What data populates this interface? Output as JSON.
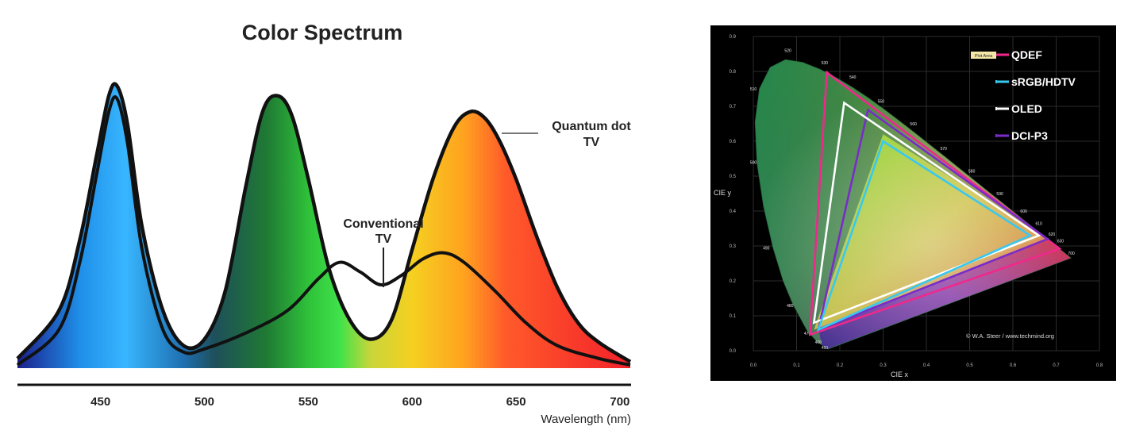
{
  "chart_data": [
    {
      "type": "line",
      "title": "Color Spectrum",
      "xlabel": "Wavelength (nm)",
      "ylabel": "",
      "xlim": [
        410,
        705
      ],
      "ylim": [
        0,
        1
      ],
      "x_ticks": [
        "450",
        "500",
        "550",
        "600",
        "650",
        "700"
      ],
      "x_tick_values": [
        450,
        500,
        550,
        600,
        650,
        700
      ],
      "grid": false,
      "spectrum_stops": [
        {
          "nm": 410,
          "color": "#1c1f8c"
        },
        {
          "nm": 440,
          "color": "#1f8fe8"
        },
        {
          "nm": 462,
          "color": "#38b6ff"
        },
        {
          "nm": 490,
          "color": "#1f6fb0"
        },
        {
          "nm": 505,
          "color": "#1e4f5a"
        },
        {
          "nm": 530,
          "color": "#1f7a33"
        },
        {
          "nm": 550,
          "color": "#2fc13a"
        },
        {
          "nm": 565,
          "color": "#3fe24a"
        },
        {
          "nm": 580,
          "color": "#c8d63a"
        },
        {
          "nm": 600,
          "color": "#f5d020"
        },
        {
          "nm": 625,
          "color": "#ffa21f"
        },
        {
          "nm": 645,
          "color": "#ff5a2a"
        },
        {
          "nm": 705,
          "color": "#f3212a"
        }
      ],
      "series": [
        {
          "name": "Quantum dot TV",
          "x": [
            410,
            430,
            440,
            448,
            454,
            458,
            463,
            470,
            480,
            490,
            500,
            510,
            520,
            528,
            535,
            542,
            550,
            560,
            570,
            580,
            590,
            600,
            610,
            620,
            628,
            635,
            642,
            650,
            660,
            670,
            680,
            690,
            705
          ],
          "values": [
            0.03,
            0.18,
            0.4,
            0.66,
            0.85,
            0.88,
            0.76,
            0.44,
            0.18,
            0.07,
            0.09,
            0.24,
            0.57,
            0.8,
            0.85,
            0.79,
            0.59,
            0.31,
            0.15,
            0.09,
            0.15,
            0.37,
            0.59,
            0.75,
            0.8,
            0.78,
            0.71,
            0.59,
            0.41,
            0.25,
            0.14,
            0.08,
            0.02
          ]
        },
        {
          "name": "Conventional TV",
          "x": [
            410,
            430,
            440,
            448,
            454,
            458,
            463,
            470,
            480,
            490,
            500,
            520,
            540,
            555,
            565,
            575,
            585,
            595,
            605,
            615,
            625,
            640,
            655,
            670,
            690,
            705
          ],
          "values": [
            0.01,
            0.12,
            0.33,
            0.6,
            0.8,
            0.84,
            0.7,
            0.37,
            0.12,
            0.05,
            0.06,
            0.11,
            0.18,
            0.28,
            0.33,
            0.3,
            0.26,
            0.29,
            0.34,
            0.36,
            0.33,
            0.24,
            0.14,
            0.07,
            0.03,
            0.01
          ]
        }
      ],
      "annotations": [
        {
          "text_lines": [
            "Quantum dot",
            "TV"
          ]
        },
        {
          "text_lines": [
            "Conventional",
            "TV"
          ]
        }
      ]
    },
    {
      "type": "scatter",
      "title": "",
      "xlabel": "CIE x",
      "ylabel": "CIE y",
      "xlim": [
        0,
        0.8
      ],
      "ylim": [
        0,
        0.9
      ],
      "x_ticks": [
        "0.0",
        "0.1",
        "0.2",
        "0.3",
        "0.4",
        "0.5",
        "0.6",
        "0.7",
        "0.8"
      ],
      "y_ticks": [
        "0.0",
        "0.1",
        "0.2",
        "0.3",
        "0.4",
        "0.5",
        "0.6",
        "0.7",
        "0.8",
        "0.9"
      ],
      "grid": true,
      "legend_position": "top-right",
      "plot_area_tag": "Plot Area",
      "credit": "© W.A. Steer / www.techmind.org",
      "locus": [
        [
          0.1741,
          0.005
        ],
        [
          0.1738,
          0.0049
        ],
        [
          0.1733,
          0.0048
        ],
        [
          0.1726,
          0.0048
        ],
        [
          0.1714,
          0.0051
        ],
        [
          0.1689,
          0.0069
        ],
        [
          0.1644,
          0.0109
        ],
        [
          0.1566,
          0.0177
        ],
        [
          0.144,
          0.0297
        ],
        [
          0.1241,
          0.0578
        ],
        [
          0.0913,
          0.1327
        ],
        [
          0.0687,
          0.2007
        ],
        [
          0.0454,
          0.295
        ],
        [
          0.0235,
          0.4127
        ],
        [
          0.0082,
          0.5384
        ],
        [
          0.0039,
          0.6548
        ],
        [
          0.0139,
          0.7502
        ],
        [
          0.0389,
          0.812
        ],
        [
          0.0743,
          0.8338
        ],
        [
          0.1142,
          0.8262
        ],
        [
          0.1547,
          0.8059
        ],
        [
          0.1929,
          0.7816
        ],
        [
          0.2296,
          0.7543
        ],
        [
          0.2658,
          0.7243
        ],
        [
          0.3016,
          0.6923
        ],
        [
          0.3373,
          0.6589
        ],
        [
          0.3731,
          0.6245
        ],
        [
          0.4087,
          0.5896
        ],
        [
          0.4441,
          0.5547
        ],
        [
          0.4788,
          0.5202
        ],
        [
          0.5125,
          0.4866
        ],
        [
          0.5448,
          0.4544
        ],
        [
          0.5752,
          0.4242
        ],
        [
          0.6029,
          0.3965
        ],
        [
          0.627,
          0.3725
        ],
        [
          0.6482,
          0.3514
        ],
        [
          0.6658,
          0.334
        ],
        [
          0.6801,
          0.3197
        ],
        [
          0.6915,
          0.3083
        ],
        [
          0.7006,
          0.2993
        ],
        [
          0.7079,
          0.292
        ],
        [
          0.714,
          0.2859
        ],
        [
          0.719,
          0.2809
        ],
        [
          0.723,
          0.277
        ],
        [
          0.726,
          0.274
        ],
        [
          0.7347,
          0.2653
        ]
      ],
      "wavelength_labels": [
        {
          "text": "520",
          "x": 0.08,
          "y": 0.856
        },
        {
          "text": "530",
          "x": 0.165,
          "y": 0.82
        },
        {
          "text": "540",
          "x": 0.23,
          "y": 0.78
        },
        {
          "text": "510",
          "x": 0.0,
          "y": 0.745
        },
        {
          "text": "550",
          "x": 0.295,
          "y": 0.71
        },
        {
          "text": "560",
          "x": 0.37,
          "y": 0.645
        },
        {
          "text": "500",
          "x": 0.0,
          "y": 0.535
        },
        {
          "text": "570",
          "x": 0.44,
          "y": 0.575
        },
        {
          "text": "580",
          "x": 0.505,
          "y": 0.51
        },
        {
          "text": "590",
          "x": 0.57,
          "y": 0.445
        },
        {
          "text": "600",
          "x": 0.625,
          "y": 0.395
        },
        {
          "text": "490",
          "x": 0.03,
          "y": 0.29
        },
        {
          "text": "610",
          "x": 0.66,
          "y": 0.36
        },
        {
          "text": "620",
          "x": 0.69,
          "y": 0.33
        },
        {
          "text": "630",
          "x": 0.71,
          "y": 0.31
        },
        {
          "text": "480",
          "x": 0.085,
          "y": 0.125
        },
        {
          "text": "470",
          "x": 0.125,
          "y": 0.045
        },
        {
          "text": "460",
          "x": 0.15,
          "y": 0.02
        },
        {
          "text": "450",
          "x": 0.165,
          "y": 0.005
        },
        {
          "text": "700",
          "x": 0.735,
          "y": 0.275
        }
      ],
      "series": [
        {
          "name": "QDEF",
          "color": "#f0288c",
          "points": [
            [
              0.708,
              0.292
            ],
            [
              0.17,
              0.797
            ],
            [
              0.131,
              0.046
            ]
          ]
        },
        {
          "name": "sRGB/HDTV",
          "color": "#38c8f0",
          "points": [
            [
              0.64,
              0.33
            ],
            [
              0.3,
              0.6
            ],
            [
              0.15,
              0.06
            ]
          ]
        },
        {
          "name": "OLED",
          "color": "#ffffff",
          "points": [
            [
              0.66,
              0.33
            ],
            [
              0.21,
              0.71
            ],
            [
              0.14,
              0.08
            ]
          ]
        },
        {
          "name": "DCI-P3",
          "color": "#7a2cc8",
          "points": [
            [
              0.68,
              0.32
            ],
            [
              0.265,
              0.69
            ],
            [
              0.15,
              0.06
            ]
          ]
        }
      ]
    }
  ]
}
